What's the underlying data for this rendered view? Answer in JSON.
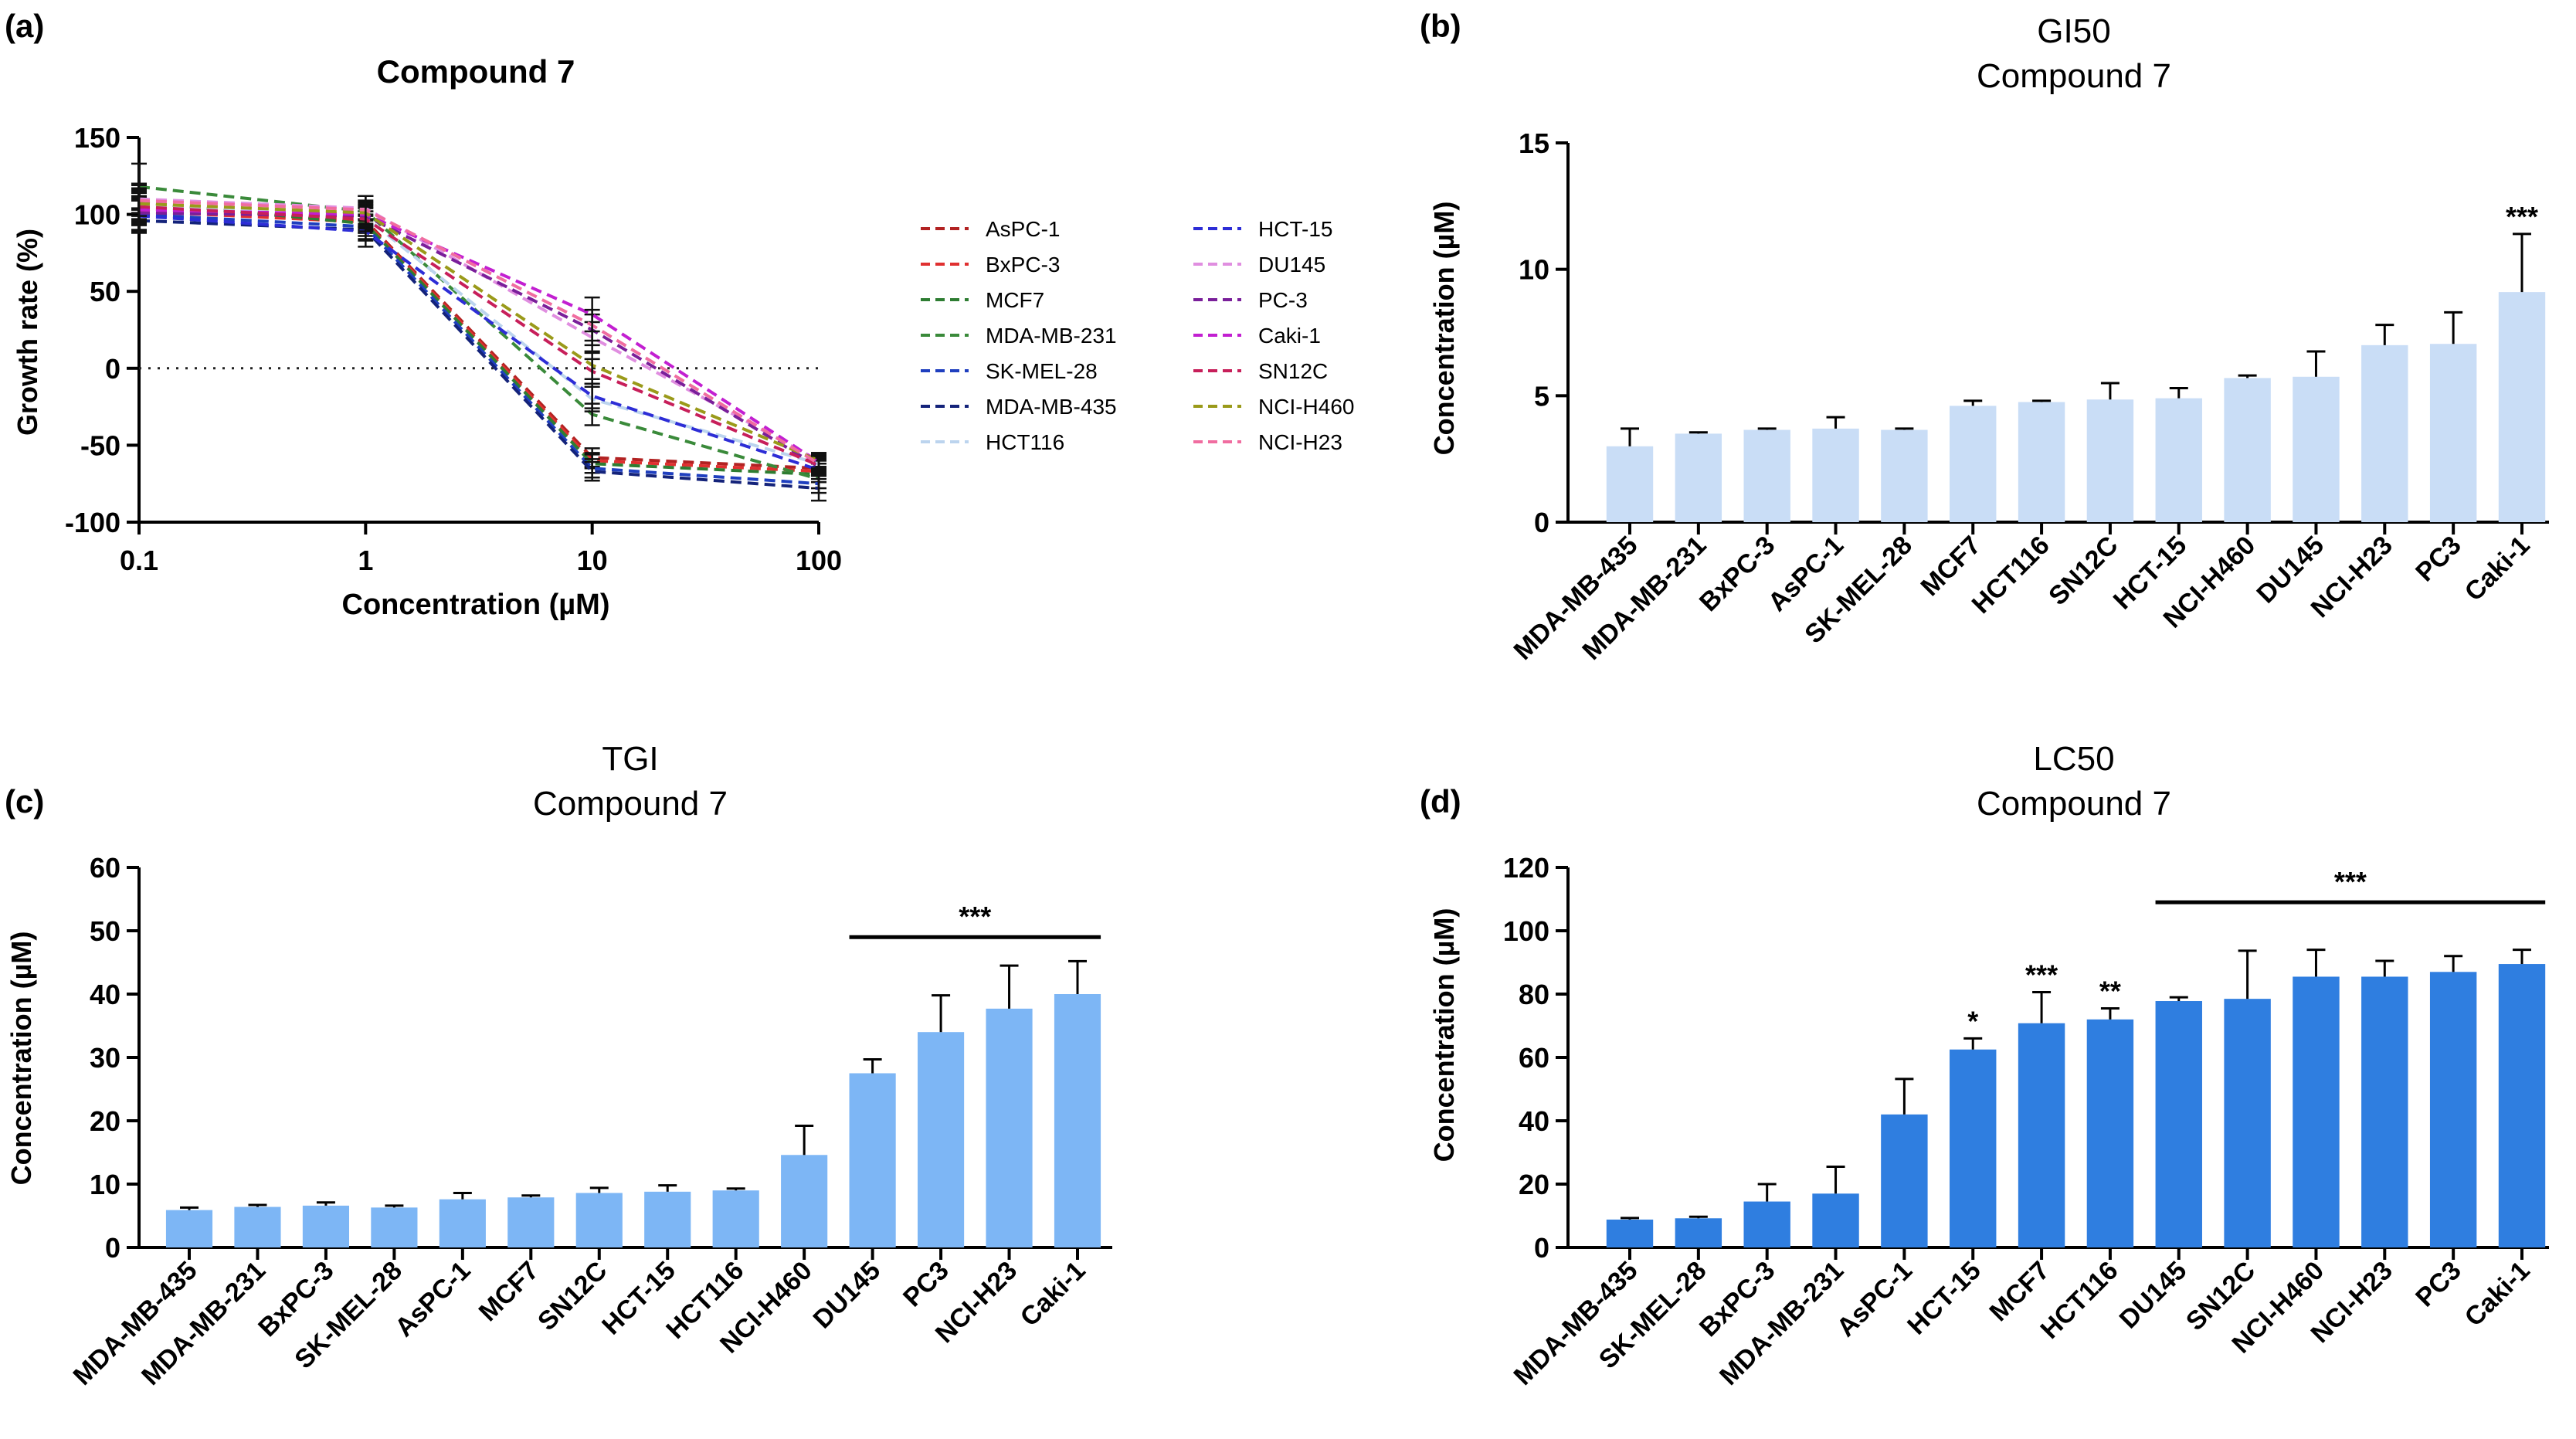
{
  "colors": {
    "bar_b": "#c9ddf6",
    "bar_c": "#7db6f5",
    "bar_d": "#2f7ee0",
    "axis": "#000000"
  },
  "chart_data": [
    {
      "id": "a",
      "panel_label": "(a)",
      "type": "line",
      "title": "Compound 7",
      "xlabel": "Concentration (µM)",
      "ylabel": "Growth rate (%)",
      "x": [
        0.1,
        1,
        10,
        100
      ],
      "x_tick_labels": [
        "0.1",
        "1",
        "10",
        "100"
      ],
      "xscale": "log",
      "ylim": [
        -100,
        150
      ],
      "yticks": [
        -100,
        -50,
        0,
        50,
        100,
        150
      ],
      "reference_line": 0,
      "legend_position": "right",
      "series": [
        {
          "name": "AsPC-1",
          "color": "#b22222",
          "values": [
            104,
            96,
            -58,
            -65
          ],
          "err": [
            10,
            8,
            6,
            5
          ]
        },
        {
          "name": "BxPC-3",
          "color": "#e03030",
          "values": [
            102,
            95,
            -60,
            -67
          ],
          "err": [
            9,
            7,
            5,
            5
          ]
        },
        {
          "name": "MCF7",
          "color": "#2e7d32",
          "values": [
            108,
            94,
            -62,
            -69
          ],
          "err": [
            12,
            8,
            6,
            5
          ]
        },
        {
          "name": "MDA-MB-231",
          "color": "#3a8a3a",
          "values": [
            118,
            102,
            -30,
            -72
          ],
          "err": [
            15,
            10,
            7,
            6
          ]
        },
        {
          "name": "SK-MEL-28",
          "color": "#1f3fbf",
          "values": [
            100,
            92,
            -65,
            -75
          ],
          "err": [
            10,
            8,
            6,
            6
          ]
        },
        {
          "name": "MDA-MB-435",
          "color": "#14237a",
          "values": [
            96,
            90,
            -67,
            -78
          ],
          "err": [
            8,
            7,
            6,
            8
          ]
        },
        {
          "name": "HCT116",
          "color": "#bcd4ee",
          "values": [
            106,
            98,
            -20,
            -62
          ],
          "err": [
            10,
            8,
            8,
            5
          ]
        },
        {
          "name": "HCT-15",
          "color": "#2d2dd6",
          "values": [
            99,
            89,
            -18,
            -66
          ],
          "err": [
            10,
            10,
            8,
            6
          ]
        },
        {
          "name": "DU145",
          "color": "#e08ee0",
          "values": [
            110,
            104,
            20,
            -60
          ],
          "err": [
            9,
            8,
            10,
            5
          ]
        },
        {
          "name": "PC-3",
          "color": "#7a1f9a",
          "values": [
            101,
            99,
            25,
            -64
          ],
          "err": [
            8,
            8,
            10,
            5
          ]
        },
        {
          "name": "Caki-1",
          "color": "#c21fd1",
          "values": [
            103,
            100,
            35,
            -61
          ],
          "err": [
            9,
            8,
            11,
            5
          ]
        },
        {
          "name": "SN12C",
          "color": "#c71f5a",
          "values": [
            105,
            97,
            -2,
            -63
          ],
          "err": [
            10,
            8,
            8,
            5
          ]
        },
        {
          "name": "NCI-H460",
          "color": "#9a9a1a",
          "values": [
            107,
            101,
            2,
            -60
          ],
          "err": [
            10,
            8,
            9,
            5
          ]
        },
        {
          "name": "NCI-H23",
          "color": "#f06da0",
          "values": [
            109,
            103,
            28,
            -62
          ],
          "err": [
            10,
            9,
            10,
            5
          ]
        }
      ]
    },
    {
      "id": "b",
      "panel_label": "(b)",
      "type": "bar",
      "title": "GI50",
      "subtitle": "Compound 7",
      "ylabel": "Concentration (µM)",
      "ylim": [
        0,
        15
      ],
      "yticks": [
        0,
        5,
        10,
        15
      ],
      "categories": [
        "MDA-MB-435",
        "MDA-MB-231",
        "BxPC-3",
        "AsPC-1",
        "SK-MEL-28",
        "MCF7",
        "HCT116",
        "SN12C",
        "HCT-15",
        "NCI-H460",
        "DU145",
        "NCI-H23",
        "PC3",
        "Caki-1"
      ],
      "values": [
        3.0,
        3.5,
        3.65,
        3.7,
        3.65,
        4.6,
        4.75,
        4.85,
        4.9,
        5.7,
        5.75,
        7.0,
        7.05,
        9.1
      ],
      "err": [
        0.7,
        0.05,
        0.05,
        0.45,
        0.05,
        0.2,
        0.05,
        0.65,
        0.4,
        0.1,
        1.0,
        0.8,
        1.25,
        2.3
      ],
      "significance": [
        {
          "label": "***",
          "category_index": 13
        }
      ]
    },
    {
      "id": "c",
      "panel_label": "(c)",
      "type": "bar",
      "title": "TGI",
      "subtitle": "Compound 7",
      "ylabel": "Concentration (µM)",
      "ylim": [
        0,
        60
      ],
      "yticks": [
        0,
        10,
        20,
        30,
        40,
        50,
        60
      ],
      "categories": [
        "MDA-MB-435",
        "MDA-MB-231",
        "BxPC-3",
        "SK-MEL-28",
        "AsPC-1",
        "MCF7",
        "SN12C",
        "HCT-15",
        "HCT116",
        "NCI-H460",
        "DU145",
        "PC3",
        "NCI-H23",
        "Caki-1"
      ],
      "values": [
        5.9,
        6.4,
        6.6,
        6.3,
        7.6,
        7.9,
        8.6,
        8.8,
        9.0,
        14.6,
        27.5,
        34.0,
        37.7,
        40.0
      ],
      "err": [
        0.4,
        0.3,
        0.5,
        0.3,
        1.0,
        0.3,
        0.8,
        1.0,
        0.3,
        4.6,
        2.2,
        5.8,
        6.8,
        5.2
      ],
      "significance": [
        {
          "label": "***",
          "from_index": 10,
          "to_index": 13,
          "value": 49
        }
      ]
    },
    {
      "id": "d",
      "panel_label": "(d)",
      "type": "bar",
      "title": "LC50",
      "subtitle": "Compound 7",
      "ylabel": "Concentration (µM)",
      "ylim": [
        0,
        120
      ],
      "yticks": [
        0,
        20,
        40,
        60,
        80,
        100,
        120
      ],
      "categories": [
        "MDA-MB-435",
        "SK-MEL-28",
        "BxPC-3",
        "MDA-MB-231",
        "AsPC-1",
        "HCT-15",
        "MCF7",
        "HCT116",
        "DU145",
        "SN12C",
        "NCI-H460",
        "NCI-H23",
        "PC3",
        "Caki-1"
      ],
      "values": [
        8.8,
        9.2,
        14.5,
        17.0,
        42.0,
        62.5,
        70.8,
        72.0,
        77.8,
        78.5,
        85.5,
        85.5,
        87.0,
        89.5
      ],
      "err": [
        0.5,
        0.5,
        5.5,
        8.5,
        11.2,
        3.5,
        9.8,
        3.5,
        1.2,
        15.2,
        8.5,
        5.0,
        5.0,
        4.5
      ],
      "significance": [
        {
          "label": "*",
          "category_index": 5
        },
        {
          "label": "***",
          "category_index": 6
        },
        {
          "label": "**",
          "category_index": 7
        },
        {
          "label": "***",
          "from_index": 8,
          "to_index": 13,
          "value": 109
        }
      ]
    }
  ]
}
